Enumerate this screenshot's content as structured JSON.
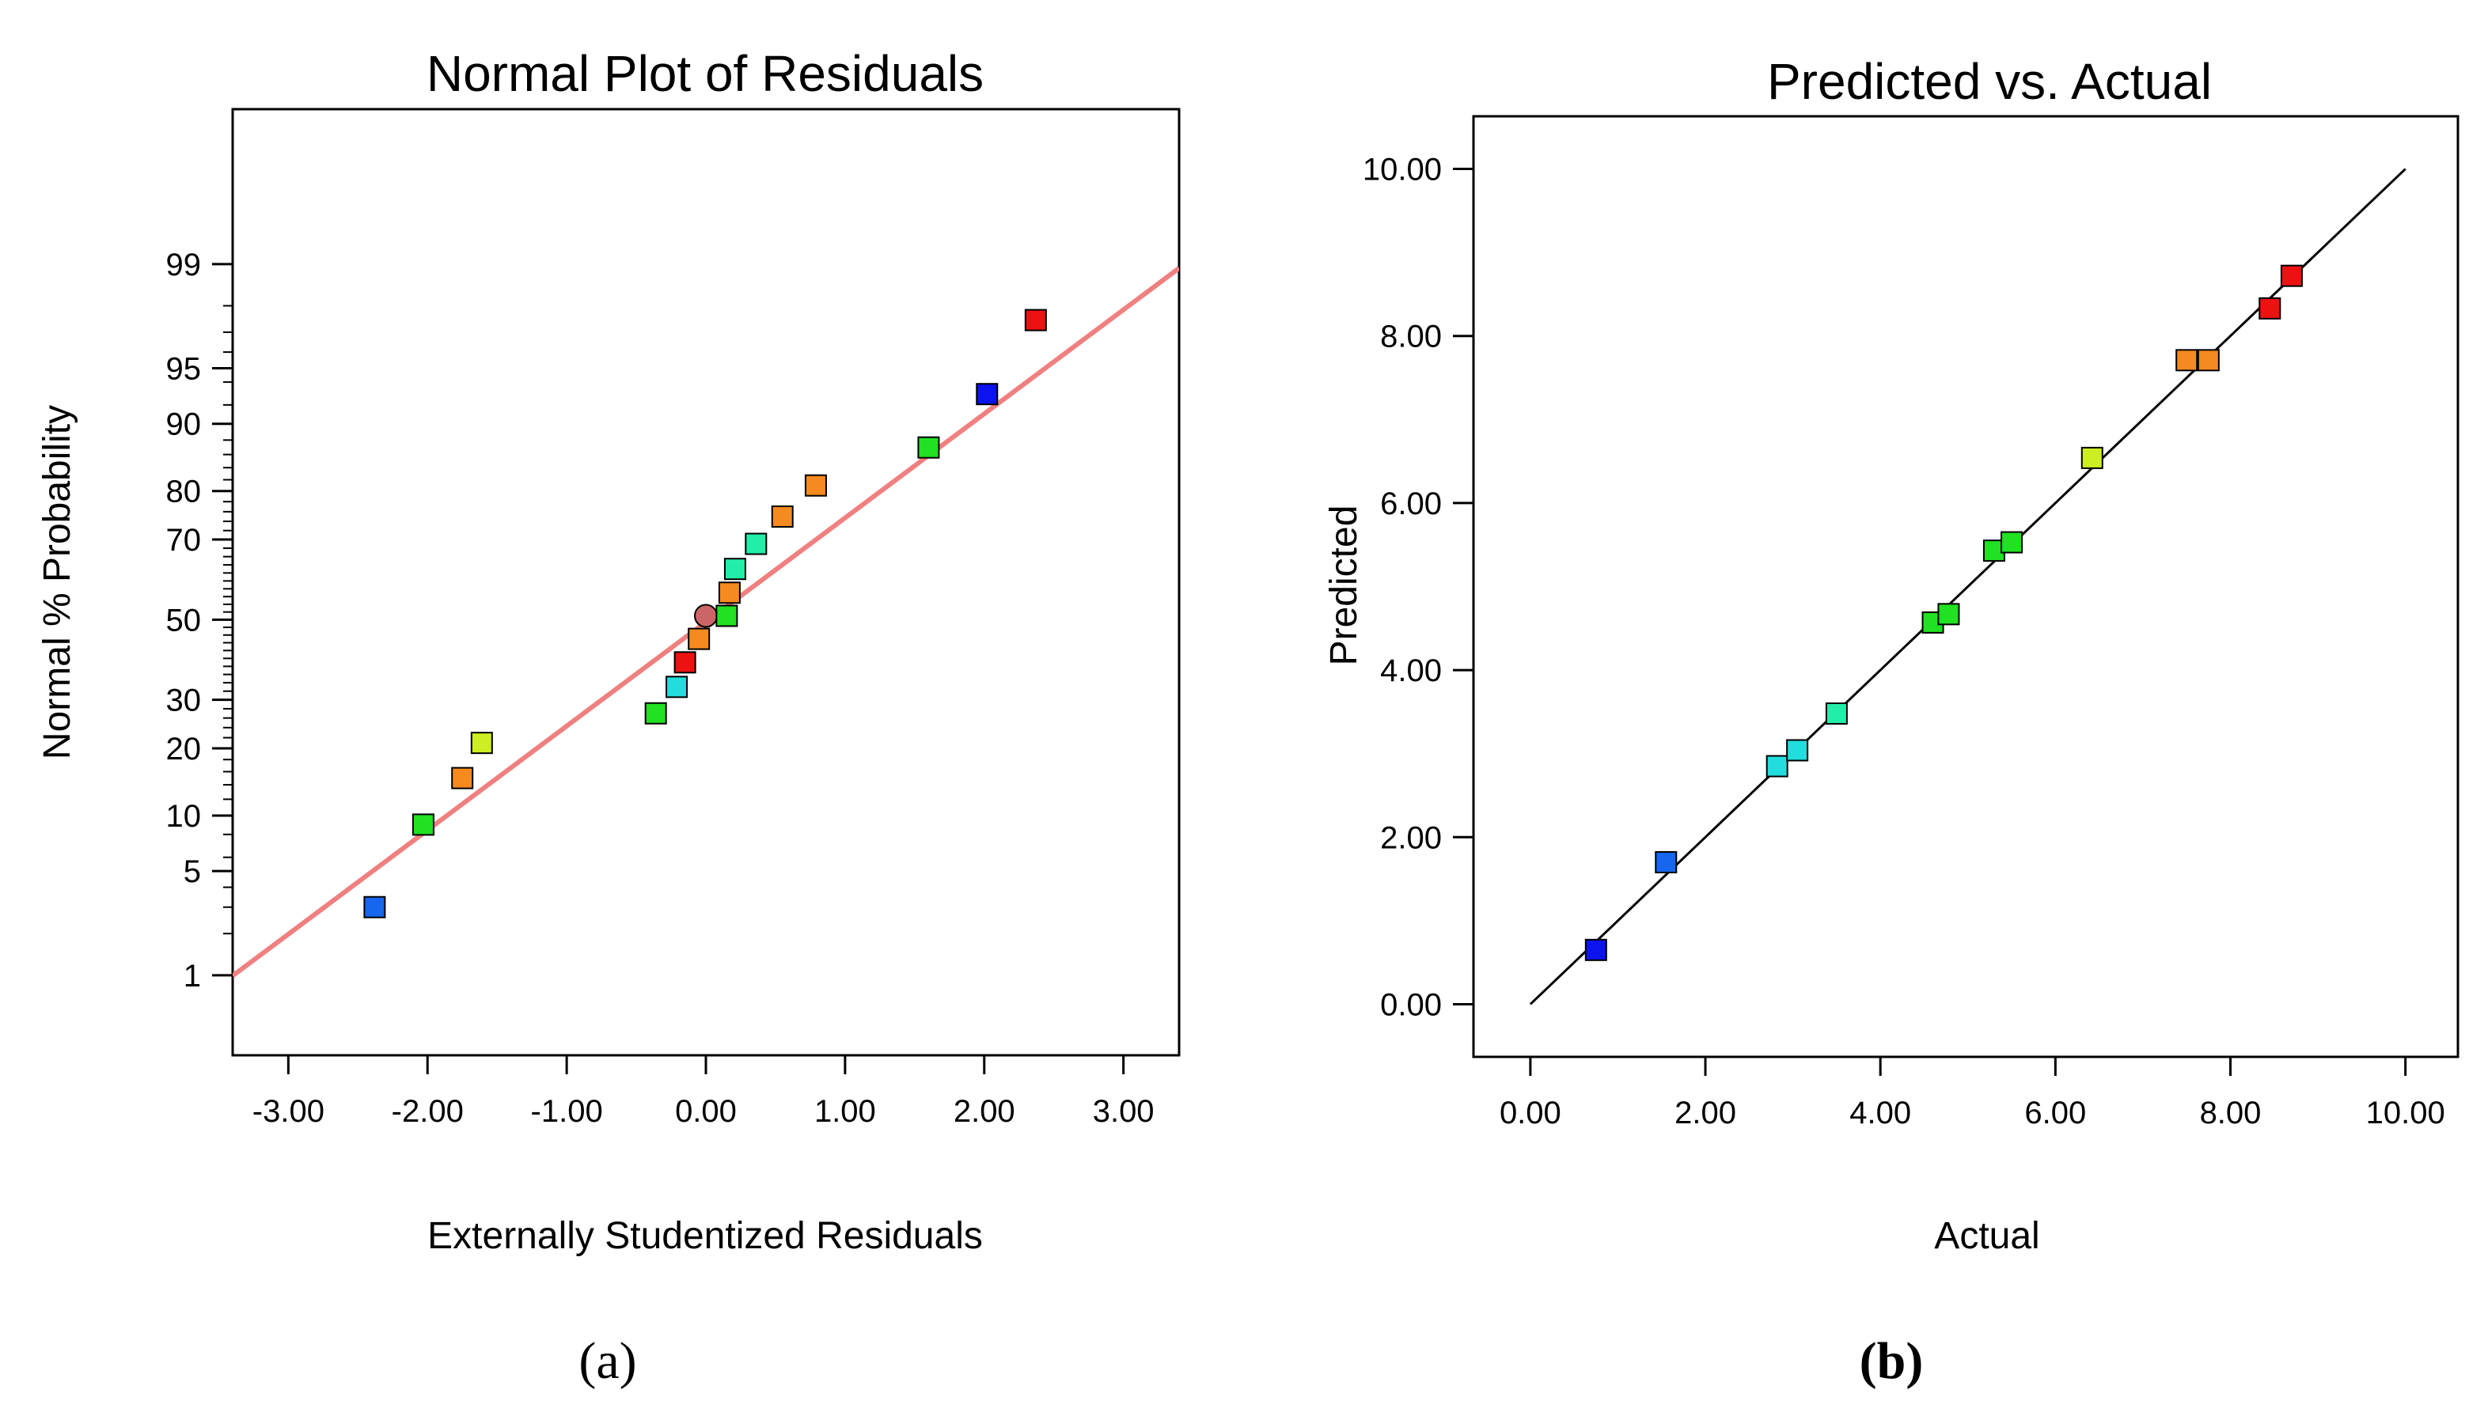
{
  "figure": {
    "panel_a_caption": "(a)",
    "panel_b_caption": "(b)"
  },
  "colors": {
    "red": "#ee1111",
    "orange": "#f58a1f",
    "yellow_green": "#ccee22",
    "green": "#22e022",
    "aqua_green": "#22eeaa",
    "cyan": "#22dddd",
    "mid_blue": "#1666ee",
    "blue": "#0b14ee",
    "center_point": "#cc6666",
    "fit_line_a": "#f08080",
    "fit_line_b": "#000000"
  },
  "chart_data": [
    {
      "type": "scatter",
      "title": "Normal Plot of Residuals",
      "xlabel": "Externally Studentized Residuals",
      "ylabel": "Normal % Probability",
      "xlim": [
        -3.4,
        3.4
      ],
      "x_ticks": [
        -3,
        -2,
        -1,
        0,
        1,
        2,
        3
      ],
      "x_tick_labels": [
        "-3.00",
        "-2.00",
        "-1.00",
        "0.00",
        "1.00",
        "2.00",
        "3.00"
      ],
      "y_scale": "normal-probability",
      "ylim_z": [
        -2.85,
        3.34
      ],
      "y_ticks": [
        1,
        5,
        10,
        20,
        30,
        50,
        70,
        80,
        90,
        95,
        99
      ],
      "y_tick_labels": [
        "1",
        "5",
        "10",
        "20",
        "30",
        "50",
        "70",
        "80",
        "90",
        "95",
        "99"
      ],
      "fit_line": {
        "x": [
          -3.4,
          3.4
        ],
        "z": [
          -2.33,
          2.3
        ]
      },
      "points": [
        {
          "x": -2.38,
          "p": 3.0,
          "color": "mid_blue",
          "marker": "square"
        },
        {
          "x": -2.03,
          "p": 9.0,
          "color": "green",
          "marker": "square"
        },
        {
          "x": -1.75,
          "p": 15.0,
          "color": "orange",
          "marker": "square"
        },
        {
          "x": -1.61,
          "p": 21.0,
          "color": "yellow_green",
          "marker": "square"
        },
        {
          "x": -0.36,
          "p": 27.0,
          "color": "green",
          "marker": "square"
        },
        {
          "x": -0.21,
          "p": 33.0,
          "color": "cyan",
          "marker": "square"
        },
        {
          "x": -0.15,
          "p": 39.0,
          "color": "red",
          "marker": "square"
        },
        {
          "x": -0.05,
          "p": 45.0,
          "color": "orange",
          "marker": "square"
        },
        {
          "x": 0.0,
          "p": 51.0,
          "color": "center_point",
          "marker": "circle"
        },
        {
          "x": 0.15,
          "p": 51.0,
          "color": "green",
          "marker": "square"
        },
        {
          "x": 0.17,
          "p": 57.0,
          "color": "orange",
          "marker": "square"
        },
        {
          "x": 0.21,
          "p": 63.0,
          "color": "aqua_green",
          "marker": "square"
        },
        {
          "x": 0.36,
          "p": 69.0,
          "color": "aqua_green",
          "marker": "square"
        },
        {
          "x": 0.55,
          "p": 75.0,
          "color": "orange",
          "marker": "square"
        },
        {
          "x": 0.79,
          "p": 81.0,
          "color": "orange",
          "marker": "square"
        },
        {
          "x": 1.6,
          "p": 87.0,
          "color": "green",
          "marker": "square"
        },
        {
          "x": 2.02,
          "p": 93.0,
          "color": "blue",
          "marker": "square"
        },
        {
          "x": 2.37,
          "p": 97.5,
          "color": "red",
          "marker": "square"
        }
      ]
    },
    {
      "type": "scatter",
      "title": "Predicted vs. Actual",
      "xlabel": "Actual",
      "ylabel": "Predicted",
      "xlim": [
        -0.65,
        10.6
      ],
      "ylim": [
        -0.63,
        10.63
      ],
      "x_ticks": [
        0,
        2,
        4,
        6,
        8,
        10
      ],
      "x_tick_labels": [
        "0.00",
        "2.00",
        "4.00",
        "6.00",
        "8.00",
        "10.00"
      ],
      "y_ticks": [
        0,
        2,
        4,
        6,
        8,
        10
      ],
      "y_tick_labels": [
        "0.00",
        "2.00",
        "4.00",
        "6.00",
        "8.00",
        "10.00"
      ],
      "fit_line": {
        "x": [
          0,
          10
        ],
        "y": [
          0,
          10
        ]
      },
      "points": [
        {
          "x": 0.75,
          "y": 0.65,
          "color": "blue"
        },
        {
          "x": 1.55,
          "y": 1.7,
          "color": "mid_blue"
        },
        {
          "x": 2.82,
          "y": 2.85,
          "color": "cyan"
        },
        {
          "x": 3.05,
          "y": 3.04,
          "color": "cyan"
        },
        {
          "x": 3.5,
          "y": 3.48,
          "color": "aqua_green"
        },
        {
          "x": 4.6,
          "y": 4.57,
          "color": "green"
        },
        {
          "x": 4.78,
          "y": 4.67,
          "color": "green"
        },
        {
          "x": 5.3,
          "y": 5.43,
          "color": "green"
        },
        {
          "x": 5.5,
          "y": 5.53,
          "color": "green"
        },
        {
          "x": 6.42,
          "y": 6.54,
          "color": "yellow_green"
        },
        {
          "x": 7.5,
          "y": 7.71,
          "color": "orange"
        },
        {
          "x": 7.75,
          "y": 7.71,
          "color": "orange"
        },
        {
          "x": 8.45,
          "y": 8.33,
          "color": "red"
        },
        {
          "x": 8.7,
          "y": 8.72,
          "color": "red"
        }
      ]
    }
  ]
}
